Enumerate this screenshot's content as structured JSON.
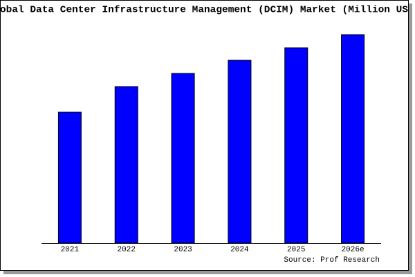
{
  "chart_data": {
    "type": "bar",
    "title": "obal Data Center Infrastructure Management (DCIM) Market (Million US",
    "categories": [
      "2021",
      "2022",
      "2023",
      "2024",
      "2025",
      "2026e"
    ],
    "values": [
      189,
      226,
      245,
      264,
      282,
      301
    ],
    "color": "#0000ff",
    "source": "Source: Prof Research"
  }
}
